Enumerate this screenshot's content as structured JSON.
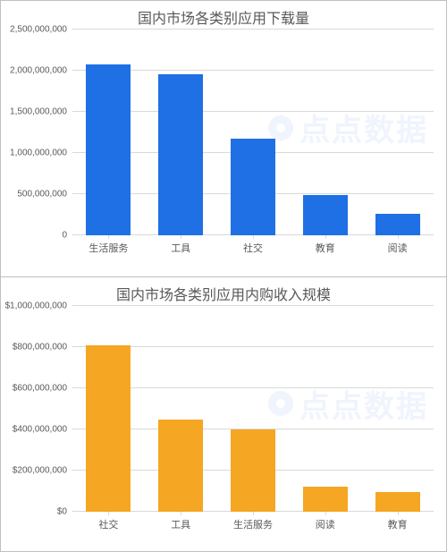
{
  "watermark_text": "点点数据",
  "watermark_color": "rgba(30,100,220,0.07)",
  "chart1": {
    "type": "bar",
    "title": "国内市场各类别应用下载量",
    "title_fontsize": 16,
    "title_color": "#595959",
    "categories": [
      "生活服务",
      "工具",
      "社交",
      "教育",
      "阅读"
    ],
    "values": [
      2080000000,
      1960000000,
      1170000000,
      490000000,
      260000000
    ],
    "bar_color": "#1f6fe5",
    "ylim": [
      0,
      2500000000
    ],
    "ytick_step": 500000000,
    "ytick_labels": [
      "0",
      "500,000,000",
      "1,000,000,000",
      "1,500,000,000",
      "2,000,000,000",
      "2,500,000,000"
    ],
    "grid_color": "#d9d9d9",
    "label_color": "#595959",
    "label_fontsize": 10,
    "background_color": "#ffffff",
    "bar_width": 0.62
  },
  "chart2": {
    "type": "bar",
    "title": "国内市场各类别应用内购收入规模",
    "title_fontsize": 16,
    "title_color": "#595959",
    "categories": [
      "社交",
      "工具",
      "生活服务",
      "阅读",
      "教育"
    ],
    "values": [
      810000000,
      450000000,
      400000000,
      120000000,
      95000000
    ],
    "bar_color": "#f5a623",
    "ylim": [
      0,
      1000000000
    ],
    "ytick_step": 200000000,
    "ytick_labels": [
      "$0",
      "$200,000,000",
      "$400,000,000",
      "$600,000,000",
      "$800,000,000",
      "$1,000,000,000"
    ],
    "grid_color": "#d9d9d9",
    "label_color": "#595959",
    "label_fontsize": 10,
    "background_color": "#ffffff",
    "bar_width": 0.62
  }
}
